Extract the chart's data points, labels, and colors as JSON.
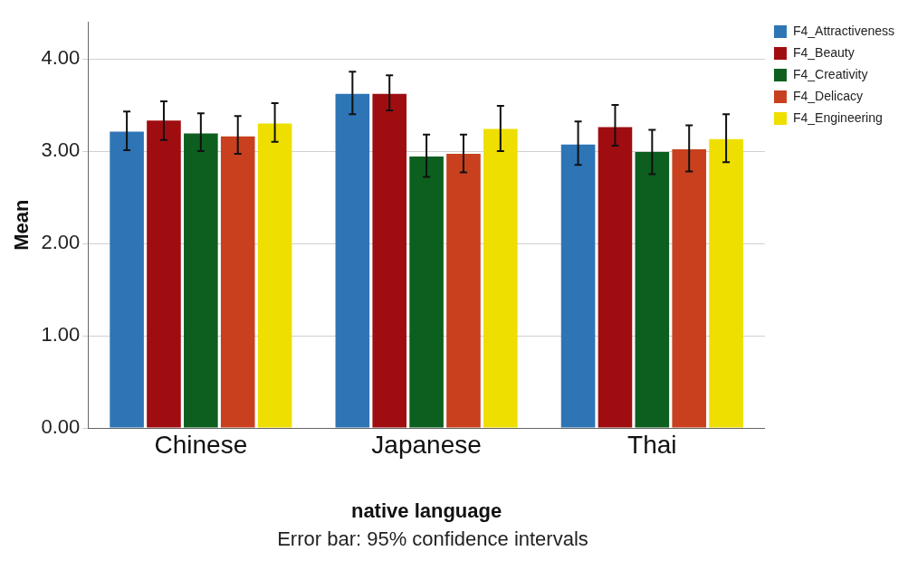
{
  "chart_data": {
    "type": "bar",
    "xlabel": "native language",
    "ylabel": "Mean",
    "annotations": [
      "Error bar: 95% confidence intervals"
    ],
    "categories": [
      "Chinese",
      "Japanese",
      "Thai"
    ],
    "series": [
      {
        "name": "F4_Attractiveness",
        "color": "#2e75b6",
        "values": [
          3.21,
          3.62,
          3.07
        ],
        "errors": [
          [
            3.01,
            3.43
          ],
          [
            3.4,
            3.86
          ],
          [
            2.85,
            3.32
          ]
        ]
      },
      {
        "name": "F4_Beauty",
        "color": "#a00d10",
        "values": [
          3.33,
          3.62,
          3.26
        ],
        "errors": [
          [
            3.12,
            3.54
          ],
          [
            3.44,
            3.82
          ],
          [
            3.06,
            3.5
          ]
        ]
      },
      {
        "name": "F4_Creativity",
        "color": "#0c5f1f",
        "values": [
          3.19,
          2.94,
          2.99
        ],
        "errors": [
          [
            3.0,
            3.41
          ],
          [
            2.72,
            3.18
          ],
          [
            2.75,
            3.23
          ]
        ]
      },
      {
        "name": "F4_Delicacy",
        "color": "#c8401e",
        "values": [
          3.16,
          2.97,
          3.02
        ],
        "errors": [
          [
            2.97,
            3.38
          ],
          [
            2.77,
            3.18
          ],
          [
            2.78,
            3.28
          ]
        ]
      },
      {
        "name": "F4_Engineering",
        "color": "#eedf00",
        "values": [
          3.3,
          3.24,
          3.13
        ],
        "errors": [
          [
            3.1,
            3.52
          ],
          [
            3.0,
            3.49
          ],
          [
            2.88,
            3.4
          ]
        ]
      }
    ],
    "ylim": [
      0,
      4.4
    ],
    "yticks": [
      {
        "value": 0,
        "label": "0.00"
      },
      {
        "value": 1,
        "label": "1.00"
      },
      {
        "value": 2,
        "label": "2.00"
      },
      {
        "value": 3,
        "label": "3.00"
      },
      {
        "value": 4,
        "label": "4.00"
      }
    ],
    "grid": "y",
    "legend": "top right"
  }
}
